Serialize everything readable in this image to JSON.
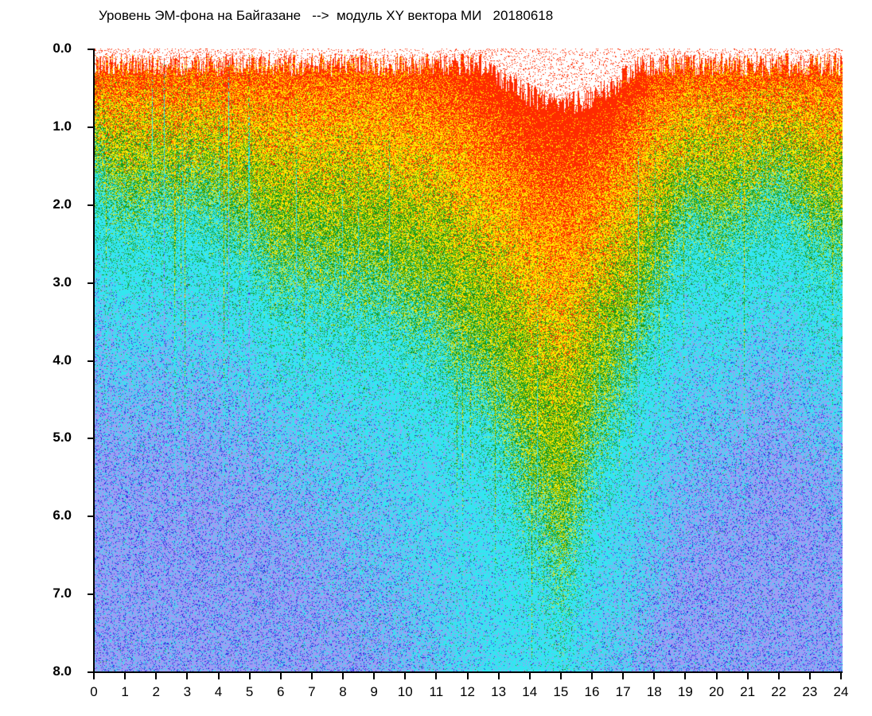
{
  "chart_data": {
    "type": "heatmap",
    "title": "Уровень ЭМ-фона на Байгазане   -->  модуль XY вектора МИ   20180618",
    "xlabel": "",
    "ylabel": "",
    "xlim": [
      0,
      24
    ],
    "ylim": [
      0.0,
      8.0
    ],
    "y_inverted": true,
    "grid": false,
    "x_ticks": [
      "0",
      "1",
      "2",
      "3",
      "4",
      "5",
      "6",
      "7",
      "8",
      "9",
      "10",
      "11",
      "12",
      "13",
      "14",
      "15",
      "16",
      "17",
      "18",
      "19",
      "20",
      "21",
      "22",
      "23",
      "24"
    ],
    "y_ticks": [
      "0.0",
      "1.0",
      "2.0",
      "3.0",
      "4.0",
      "5.0",
      "6.0",
      "7.0",
      "8.0"
    ],
    "color_scale": [
      "#ff2a00",
      "#ffe600",
      "#1a9a1a",
      "#33e6f0",
      "#9f9cf5",
      "#2a2ae0"
    ],
    "hours": [
      0,
      1,
      2,
      3,
      4,
      5,
      6,
      7,
      8,
      9,
      10,
      11,
      12,
      13,
      14,
      15,
      16,
      17,
      18,
      19,
      20,
      21,
      22,
      23,
      24
    ],
    "approx_red_zone_depth": [
      0.4,
      0.4,
      0.4,
      0.4,
      0.4,
      0.4,
      0.4,
      0.4,
      0.4,
      0.4,
      0.5,
      0.6,
      0.9,
      1.3,
      1.7,
      1.9,
      1.7,
      1.2,
      0.6,
      0.4,
      0.4,
      0.4,
      0.4,
      0.4,
      0.4
    ],
    "approx_green_to_cyan_depth": [
      1.5,
      2.0,
      1.9,
      1.8,
      2.0,
      2.3,
      2.8,
      2.8,
      3.0,
      3.0,
      3.3,
      3.5,
      4.0,
      4.6,
      5.6,
      6.5,
      5.0,
      4.0,
      3.0,
      2.0,
      2.3,
      2.0,
      1.8,
      2.2,
      2.5
    ]
  }
}
